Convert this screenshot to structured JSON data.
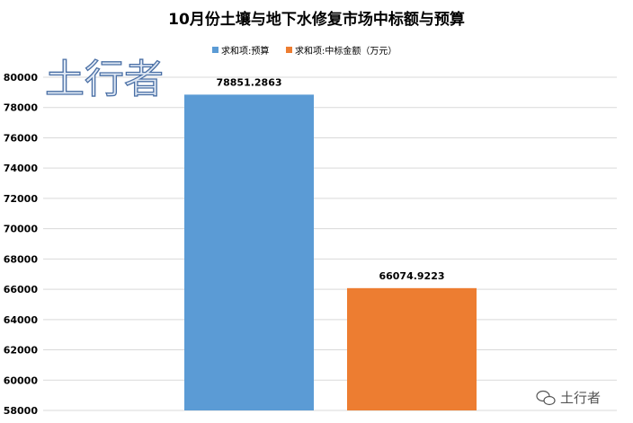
{
  "chart_data": {
    "type": "bar",
    "title": "10月份土壤与地下水修复市场中标额与预算",
    "categories": [
      "求和项:预算",
      "求和项:中标金额（万元）"
    ],
    "values": [
      78851.2863,
      66074.9223
    ],
    "data_labels": [
      "78851.2863",
      "66074.9223"
    ],
    "colors": [
      "#5B9BD5",
      "#ED7D31"
    ],
    "ylim": [
      58000,
      80000
    ],
    "yticks": [
      58000,
      60000,
      62000,
      64000,
      66000,
      68000,
      70000,
      72000,
      74000,
      76000,
      78000,
      80000
    ],
    "ytick_labels": [
      "58000",
      "60000",
      "62000",
      "64000",
      "66000",
      "68000",
      "70000",
      "72000",
      "74000",
      "76000",
      "78000",
      "80000"
    ],
    "grid": true,
    "legend_position": "top-center"
  },
  "watermark": {
    "text": "土行者"
  },
  "footer_badge": {
    "text": "土行者",
    "icon": "wechat-icon",
    "color": "#555555"
  }
}
